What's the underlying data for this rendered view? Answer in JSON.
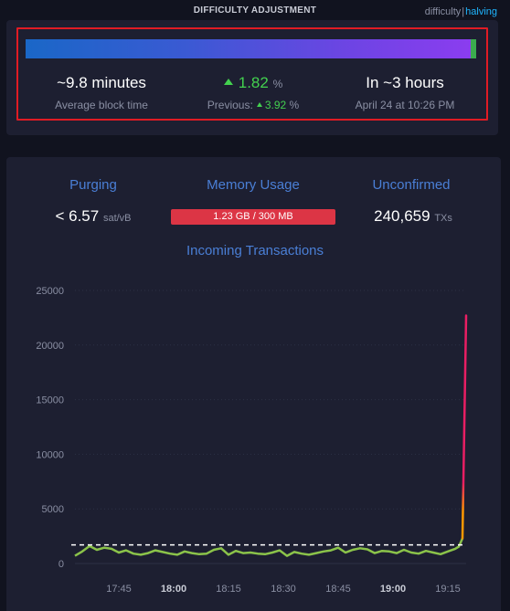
{
  "header": {
    "title": "DIFFICULTY ADJUSTMENT",
    "link_difficulty": "difficulty",
    "link_separator": "|",
    "link_halving": "halving"
  },
  "difficulty": {
    "progress_fraction": 0.98,
    "block_time_value": "~9.8 minutes",
    "block_time_label": "Average block time",
    "change_value": "1.82",
    "change_unit": "%",
    "previous_label": "Previous:",
    "previous_value": "3.92",
    "previous_unit": "%",
    "eta_value": "In ~3 hours",
    "eta_date": "April 24 at 10:26 PM",
    "colors": {
      "positive": "#43d14f",
      "highlight": "#e01b24"
    }
  },
  "mempool": {
    "purging_label": "Purging",
    "purging_value": "< 6.57",
    "purging_unit": "sat/vB",
    "memory_label": "Memory Usage",
    "memory_value": "1.23 GB / 300 MB",
    "unconfirmed_label": "Unconfirmed",
    "unconfirmed_value": "240,659",
    "unconfirmed_unit": "TXs"
  },
  "chart_data": {
    "type": "line",
    "title": "Incoming Transactions",
    "xlabel": "",
    "ylabel": "",
    "ylim": [
      0,
      25000
    ],
    "xlim": [
      "17:33",
      "19:20"
    ],
    "yticks": [
      0,
      5000,
      10000,
      15000,
      20000,
      25000
    ],
    "xticks": [
      {
        "label": "17:45",
        "bold": false
      },
      {
        "label": "18:00",
        "bold": true
      },
      {
        "label": "18:15",
        "bold": false
      },
      {
        "label": "18:30",
        "bold": false
      },
      {
        "label": "18:45",
        "bold": false
      },
      {
        "label": "19:00",
        "bold": true
      },
      {
        "label": "19:15",
        "bold": false
      }
    ],
    "reference_line": 1700,
    "series": [
      {
        "x": [
          "17:33",
          "17:35",
          "17:37",
          "17:39",
          "17:41",
          "17:43",
          "17:45",
          "17:47",
          "17:49",
          "17:51",
          "17:53",
          "17:55",
          "17:57",
          "17:59",
          "18:01",
          "18:03",
          "18:05",
          "18:07",
          "18:09",
          "18:11",
          "18:13",
          "18:15",
          "18:17",
          "18:19",
          "18:21",
          "18:23",
          "18:25",
          "18:27",
          "18:29",
          "18:31",
          "18:33",
          "18:35",
          "18:37",
          "18:39",
          "18:41",
          "18:43",
          "18:45",
          "18:47",
          "18:49",
          "18:51",
          "18:53",
          "18:55",
          "18:57",
          "18:59",
          "19:01",
          "19:03",
          "19:05",
          "19:07",
          "19:09",
          "19:11",
          "19:13",
          "19:15",
          "19:17",
          "19:18",
          "19:19"
        ],
        "values": [
          700,
          1100,
          1600,
          1250,
          1450,
          1350,
          1000,
          1200,
          900,
          800,
          950,
          1200,
          1050,
          900,
          800,
          1100,
          950,
          850,
          900,
          1250,
          1400,
          800,
          1150,
          950,
          1000,
          900,
          850,
          1000,
          1200,
          700,
          1050,
          900,
          800,
          950,
          1100,
          1200,
          1450,
          1000,
          1250,
          1400,
          1300,
          950,
          1150,
          1100,
          950,
          1250,
          1000,
          900,
          1150,
          1000,
          850,
          1100,
          1350,
          1550,
          2300
        ]
      }
    ],
    "spike": {
      "x": [
        "19:19",
        "19:20"
      ],
      "values": [
        2300,
        22700
      ]
    },
    "colors": {
      "line": "#8bc34a",
      "spike": "#e91e63",
      "spike_base": "#ff9800",
      "reference": "#ffffff"
    }
  }
}
